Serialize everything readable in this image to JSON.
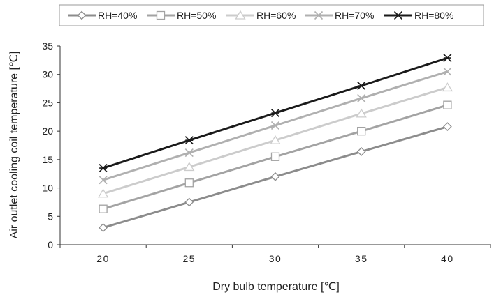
{
  "chart_data": {
    "type": "line",
    "x": [
      20,
      25,
      30,
      35,
      40
    ],
    "xlabel": "Dry bulb temperature [℃]",
    "ylabel": "Air outlet cooling  coil temperature [℃]",
    "ylim": [
      0,
      35
    ],
    "yticks": [
      0,
      5,
      10,
      15,
      20,
      25,
      30,
      35
    ],
    "xtick_labels": [
      "20",
      "25",
      "30",
      "35",
      "40"
    ],
    "legend_position": "top",
    "grid": false,
    "series": [
      {
        "name": "RH=40%",
        "values": [
          3.0,
          7.5,
          12.0,
          16.4,
          20.8
        ],
        "color": "#8c8c8c",
        "marker": "diamond"
      },
      {
        "name": "RH=50%",
        "values": [
          6.3,
          10.9,
          15.5,
          20.0,
          24.6
        ],
        "color": "#a3a3a3",
        "marker": "square"
      },
      {
        "name": "RH=60%",
        "values": [
          9.0,
          13.7,
          18.4,
          23.1,
          27.7
        ],
        "color": "#cccccc",
        "marker": "triangle"
      },
      {
        "name": "RH=70%",
        "values": [
          11.4,
          16.2,
          21.0,
          25.8,
          30.5
        ],
        "color": "#b0b0b0",
        "marker": "x"
      },
      {
        "name": "RH=80%",
        "values": [
          13.5,
          18.4,
          23.2,
          28.0,
          32.9
        ],
        "color": "#1a1a1a",
        "marker": "star"
      }
    ]
  }
}
